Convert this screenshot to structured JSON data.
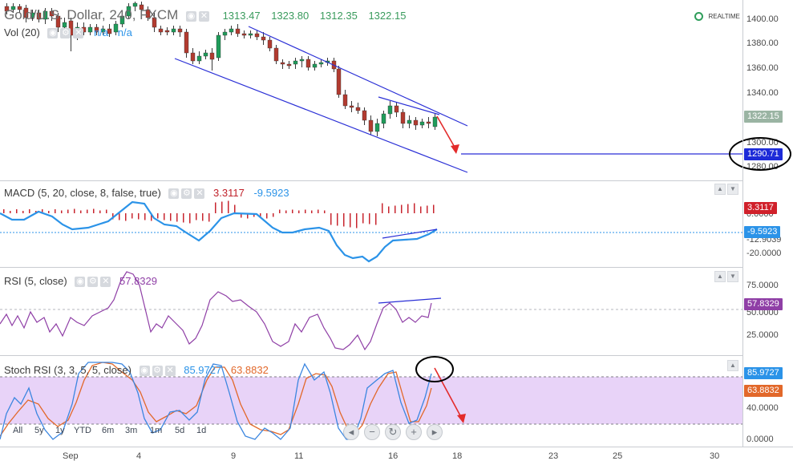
{
  "symbol": {
    "title": "Gold/U.S. Dollar, 240, FXCM",
    "open": "1313.47",
    "high": "1323.80",
    "low": "1312.35",
    "close": "1322.15"
  },
  "volume": {
    "label": "Vol (20)",
    "v1": "n/a",
    "v2": "n/a"
  },
  "realtime": {
    "label": "REALTIME"
  },
  "price_axis": {
    "ticks": [
      "1400.00",
      "1380.00",
      "1360.00",
      "1340.00",
      "1300.00",
      "1280.00"
    ],
    "last_price": "1322.15",
    "marked_price": "1290.71"
  },
  "macd": {
    "title": "MACD (5, 20, close, 8, false, true)",
    "value1": "3.3117",
    "value2": "-9.5923",
    "axis_ticks": [
      "0.0000",
      "-12.9039",
      "-20.0000"
    ],
    "badge1": "3.3117",
    "badge2": "-9.5923"
  },
  "rsi": {
    "title": "RSI (5, close)",
    "value": "57.8329",
    "axis_ticks": [
      "75.0000",
      "50.0000",
      "25.0000"
    ],
    "badge": "57.8329"
  },
  "stoch": {
    "title": "Stoch RSI (3, 3, 5, 5, close)",
    "k": "85.9727",
    "d": "63.8832",
    "axis_ticks": [
      "40.0000",
      "0.0000"
    ],
    "badge_k": "85.9727",
    "badge_d": "63.8832"
  },
  "periods": [
    "All",
    "5y",
    "1y",
    "YTD",
    "6m",
    "3m",
    "1m",
    "5d",
    "1d"
  ],
  "x_axis": [
    "Sep",
    "4",
    "9",
    "11",
    "16",
    "18",
    "23",
    "25",
    "30"
  ],
  "icons": {
    "status": "realtime-clock-icon",
    "indicator_controls": [
      "eye-icon",
      "gear-icon",
      "close-icon"
    ],
    "zoom": [
      "zoom-out-icon",
      "reset-icon",
      "zoom-in-icon",
      "scroll-right-icon"
    ]
  },
  "colors": {
    "candle_up": "#1f9c5a",
    "candle_down": "#b23b30",
    "channel": "#2a2fd6",
    "macd_line": "#2b93e8",
    "rsi_line": "#8f3fa6",
    "stoch_k": "#3b86e0",
    "stoch_d": "#e2682a",
    "stoch_band": "#e8d3f8",
    "arrow": "#e32b2b",
    "marked_line": "#2a2fd6"
  }
}
